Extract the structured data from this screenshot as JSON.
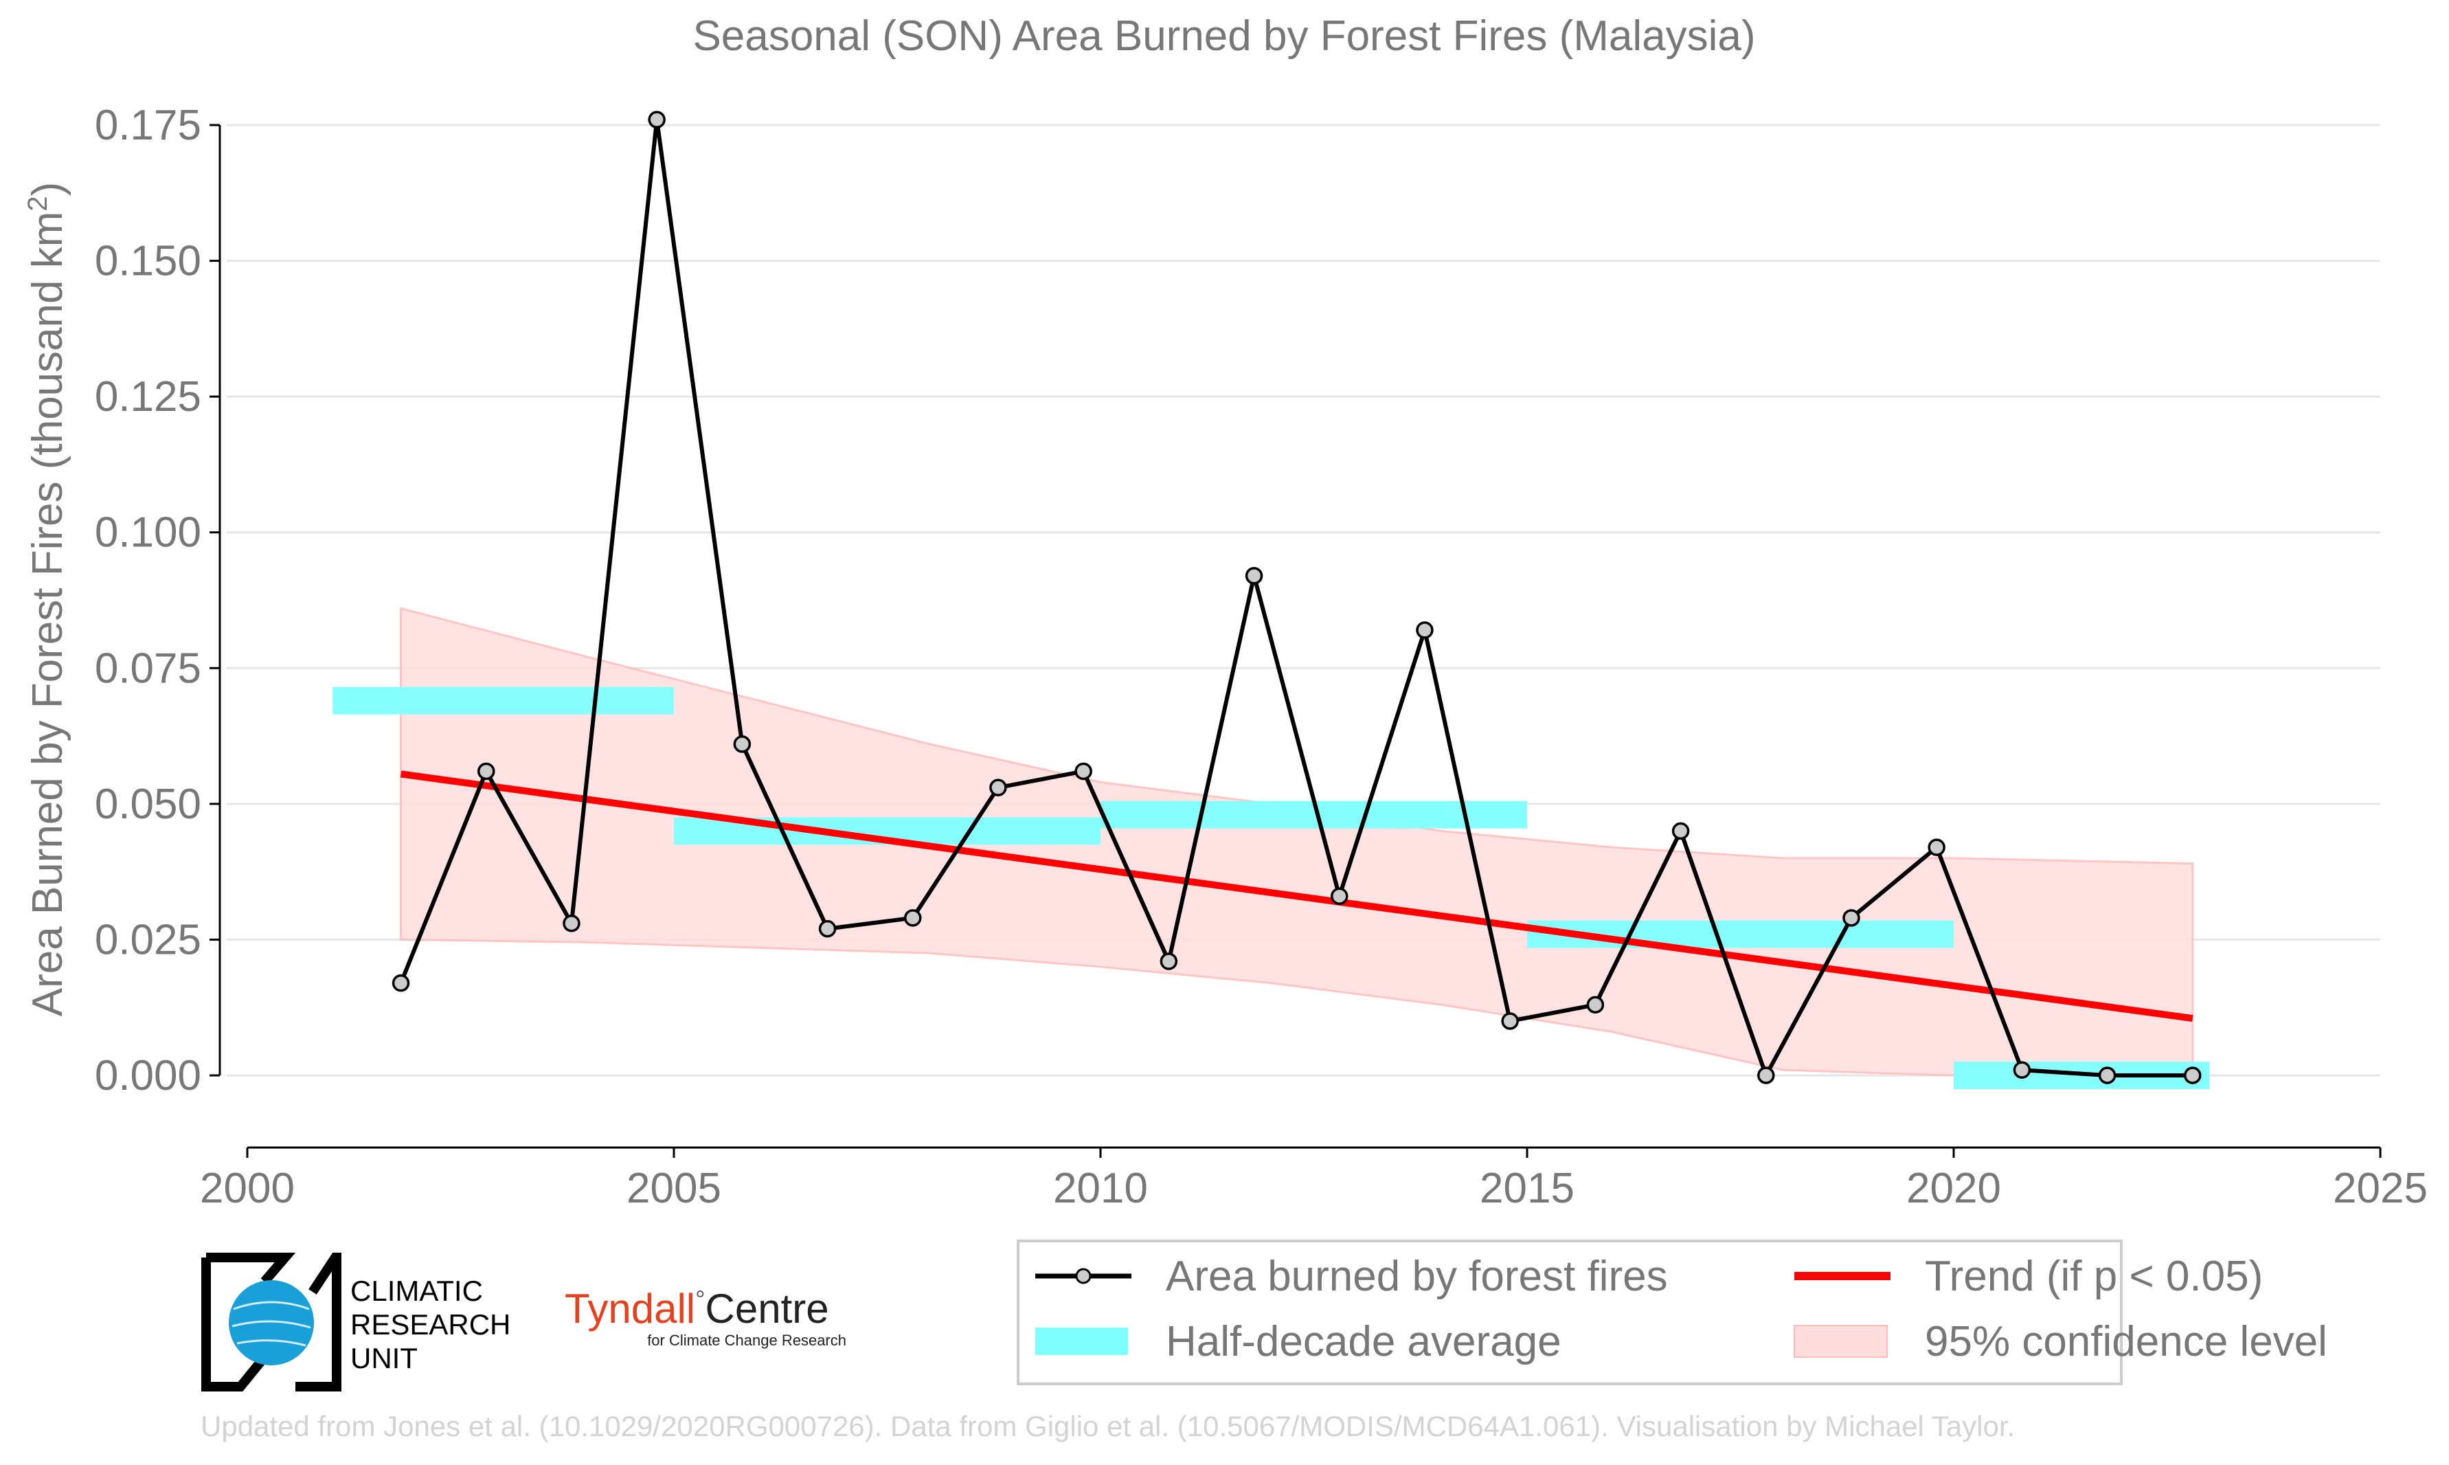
{
  "chart_data": {
    "type": "line",
    "title": "Seasonal (SON) Area Burned by Forest Fires (Malaysia)",
    "ylabel_main": "Area Burned by Forest Fires (thousand km",
    "ylabel_sup": "2",
    "ylabel_close": ")",
    "xlabel": "",
    "xlim": [
      2000,
      2025
    ],
    "ylim": [
      -0.013,
      0.177
    ],
    "x_ticks": [
      "2000",
      "2005",
      "2010",
      "2015",
      "2020",
      "2025"
    ],
    "y_ticks": [
      "0.000",
      "0.025",
      "0.050",
      "0.075",
      "0.100",
      "0.125",
      "0.150",
      "0.175"
    ],
    "grid": "horizontal",
    "series": [
      {
        "name": "Area burned by forest fires",
        "color": "#000000",
        "x": [
          2001.8,
          2002.8,
          2003.8,
          2004.8,
          2005.8,
          2006.8,
          2007.8,
          2008.8,
          2009.8,
          2010.8,
          2011.8,
          2012.8,
          2013.8,
          2014.8,
          2015.8,
          2016.8,
          2017.8,
          2018.8,
          2019.8,
          2020.8,
          2021.8,
          2022.8
        ],
        "values": [
          0.017,
          0.056,
          0.028,
          0.176,
          0.061,
          0.027,
          0.029,
          0.053,
          0.056,
          0.021,
          0.092,
          0.033,
          0.082,
          0.01,
          0.013,
          0.045,
          0.0,
          0.029,
          0.042,
          0.001,
          0.0,
          0.0
        ]
      }
    ],
    "half_decade_average": {
      "name": "Half-decade average",
      "color": "#7fffff",
      "segments": [
        {
          "x_start": 2001.0,
          "x_end": 2005.0,
          "value": 0.069
        },
        {
          "x_start": 2005.0,
          "x_end": 2010.0,
          "value": 0.045
        },
        {
          "x_start": 2010.0,
          "x_end": 2015.0,
          "value": 0.048
        },
        {
          "x_start": 2015.0,
          "x_end": 2020.0,
          "value": 0.026
        },
        {
          "x_start": 2020.0,
          "x_end": 2023.0,
          "value": 0.0
        }
      ]
    },
    "trend": {
      "name": "Trend (if p < 0.05)",
      "color": "#ff0000",
      "x": [
        2001.8,
        2022.8
      ],
      "values": [
        0.0555,
        0.0105
      ]
    },
    "confidence": {
      "name": "95% confidence level",
      "color": "#ffdddd",
      "x": [
        2001.8,
        2004,
        2006,
        2008,
        2010,
        2012,
        2014,
        2016,
        2018,
        2020,
        2022.8
      ],
      "upper": [
        0.086,
        0.077,
        0.069,
        0.061,
        0.054,
        0.05,
        0.045,
        0.042,
        0.04,
        0.04,
        0.039
      ],
      "lower": [
        0.025,
        0.0245,
        0.0235,
        0.0225,
        0.02,
        0.017,
        0.013,
        0.008,
        0.001,
        0.0,
        0.0
      ]
    },
    "legend_position": "bottom-right"
  },
  "logos": {
    "cru_line1": "CLIMATIC",
    "cru_line2": "RESEARCH",
    "cru_line3": "UNIT",
    "tyndall_main": "Tyndall",
    "tyndall_degree": "°",
    "tyndall_centre": "Centre",
    "tyndall_sub": "for Climate Change Research"
  },
  "credit": "Updated from Jones et al. (10.1029/2020RG000726). Data from Giglio et al. (10.5067/MODIS/MCD64A1.061). Visualisation by Michael Taylor."
}
